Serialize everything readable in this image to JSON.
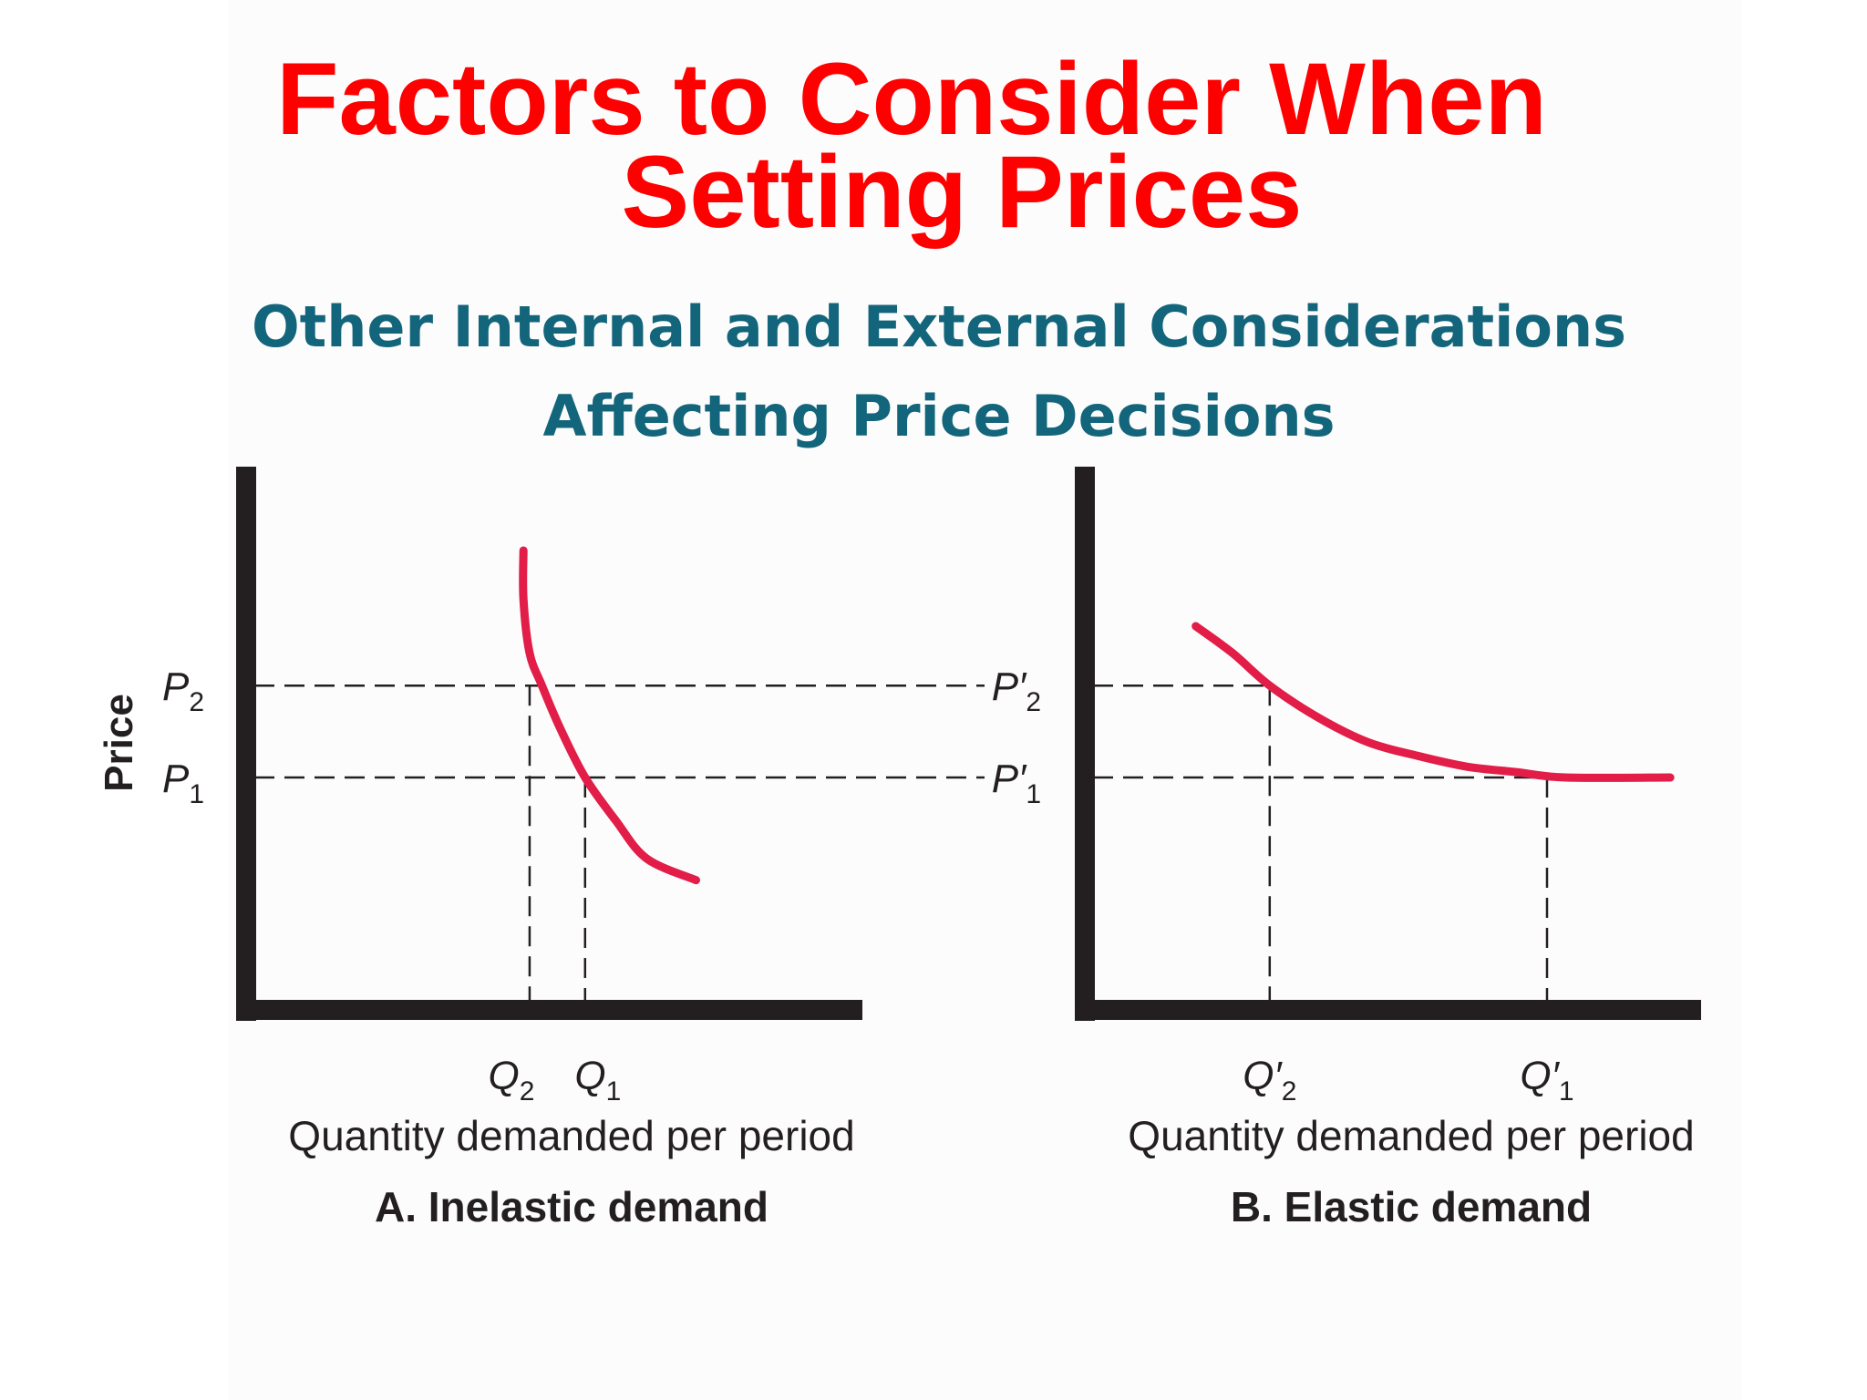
{
  "title": {
    "line1": "Factors to Consider When",
    "line2": "Setting Prices"
  },
  "subtitle": {
    "line1": "Other Internal and External Considerations",
    "line2": "Affecting Price Decisions"
  },
  "colors": {
    "title": "#ff0000",
    "subtitle": "#12657a",
    "curve": "#e11d48",
    "axis": "#231f20"
  },
  "chart_data": [
    {
      "type": "line",
      "panel_title": "A. Inelastic demand",
      "xlabel": "Quantity demanded per period",
      "ylabel": "Price",
      "xlim": [
        0,
        10
      ],
      "ylim": [
        0,
        10
      ],
      "grid": false,
      "y_ticks": [
        {
          "label": "P",
          "sub": "2",
          "value": 6.0
        },
        {
          "label": "P",
          "sub": "1",
          "value": 4.3
        }
      ],
      "x_ticks": [
        {
          "label": "Q",
          "sub": "2",
          "value": 4.6
        },
        {
          "label": "Q",
          "sub": "1",
          "value": 5.5
        }
      ],
      "series": [
        {
          "x": [
            4.5,
            4.5,
            4.6,
            4.8,
            5.1,
            5.5,
            6.0,
            6.5,
            7.3
          ],
          "y": [
            8.5,
            7.6,
            6.6,
            6.0,
            5.2,
            4.3,
            3.5,
            2.8,
            2.4
          ]
        }
      ]
    },
    {
      "type": "line",
      "panel_title": "B. Elastic demand",
      "xlabel": "Quantity demanded per period",
      "xlim": [
        0,
        10
      ],
      "ylim": [
        0,
        10
      ],
      "grid": false,
      "y_ticks": [
        {
          "label": "P′",
          "sub": "2",
          "value": 6.0
        },
        {
          "label": "P′",
          "sub": "1",
          "value": 4.3
        }
      ],
      "x_ticks": [
        {
          "label": "Q′",
          "sub": "2",
          "value": 3.0
        },
        {
          "label": "Q′",
          "sub": "1",
          "value": 7.5
        }
      ],
      "series": [
        {
          "x": [
            1.8,
            2.4,
            3.0,
            3.8,
            4.6,
            5.4,
            6.2,
            7.0,
            7.8,
            9.5
          ],
          "y": [
            7.1,
            6.6,
            6.0,
            5.4,
            4.95,
            4.7,
            4.5,
            4.4,
            4.3,
            4.3
          ]
        }
      ]
    }
  ]
}
